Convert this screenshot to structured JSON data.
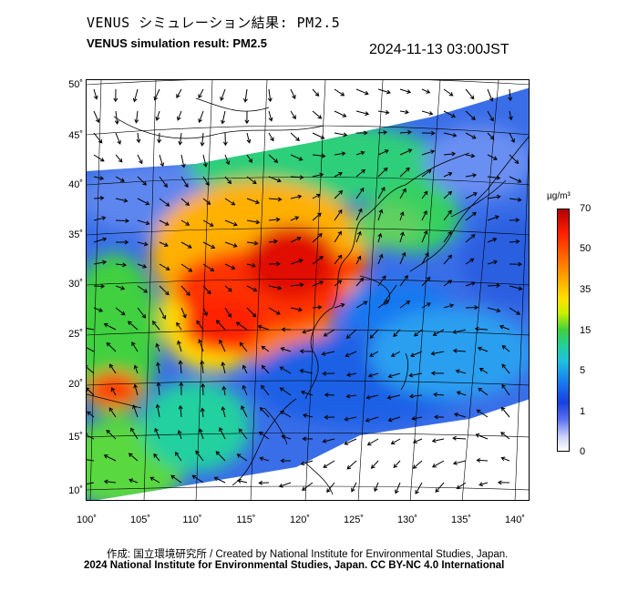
{
  "title_jp": "VENUS シミュレーション結果: PM2.5",
  "title_en": "VENUS simulation result: PM2.5",
  "timestamp": "2024-11-13 03:00JST",
  "map": {
    "lat_ticks": [
      "50˚",
      "45˚",
      "40˚",
      "35˚",
      "30˚",
      "25˚",
      "20˚",
      "15˚",
      "10˚"
    ],
    "lon_ticks": [
      "100˚",
      "105˚",
      "110˚",
      "115˚",
      "120˚",
      "125˚",
      "130˚",
      "135˚",
      "140˚"
    ]
  },
  "colorbar": {
    "unit": "µg/m³",
    "labels": [
      "70",
      "50",
      "35",
      "15",
      "5",
      "1",
      "0"
    ]
  },
  "credits": {
    "line1": "作成: 国立環境研究所 / Created by National Institute for Environmental Studies, Japan.",
    "line2": "2024 National Institute for Environmental Studies, Japan. CC BY-NC 4.0 International"
  }
}
